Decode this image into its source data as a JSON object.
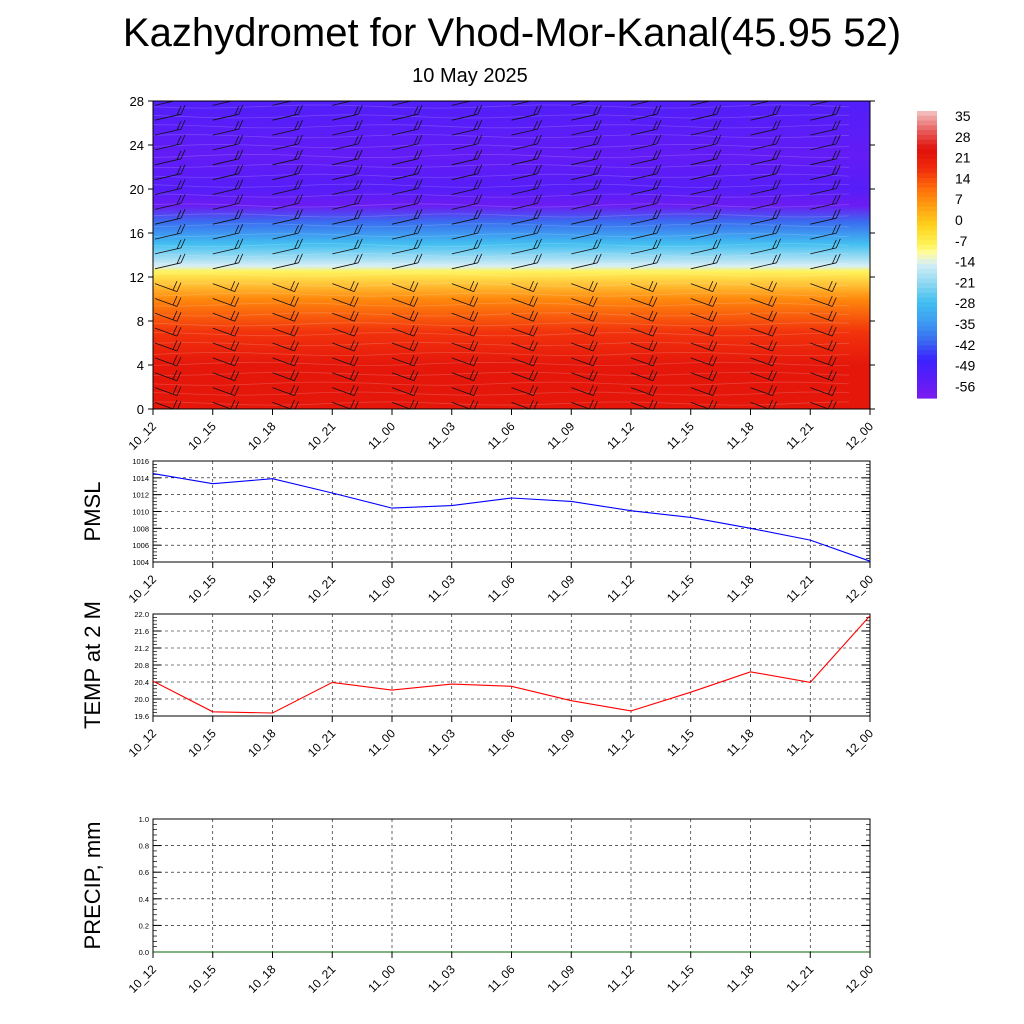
{
  "header": {
    "title": "Kazhydromet for Vhod-Mor-Kanal(45.95 52)",
    "subtitle": "10 May 2025"
  },
  "chart_data": [
    {
      "type": "heatmap",
      "id": "temperature-cross-section",
      "categories": [
        "10_12",
        "10_15",
        "10_18",
        "10_21",
        "11_00",
        "11_03",
        "11_06",
        "11_09",
        "11_12",
        "11_15",
        "11_18",
        "11_21",
        "12_00"
      ],
      "y_ticks": [
        0,
        4,
        8,
        12,
        16,
        20,
        24,
        28
      ],
      "ylim": [
        0,
        28
      ],
      "colorbar_labels": [
        "35",
        "28",
        "21",
        "14",
        "7",
        "0",
        "-7",
        "-14",
        "-21",
        "-28",
        "-35",
        "-42",
        "-49",
        "-56"
      ],
      "colorbar_range": [
        -63,
        42
      ],
      "profile": [
        {
          "level": 0,
          "value": 26
        },
        {
          "level": 4,
          "value": 26
        },
        {
          "level": 7,
          "value": 20
        },
        {
          "level": 10,
          "value": 10
        },
        {
          "level": 12.5,
          "value": -7
        },
        {
          "level": 13,
          "value": -14
        },
        {
          "level": 15,
          "value": -28
        },
        {
          "level": 17,
          "value": -42
        },
        {
          "level": 18.5,
          "value": -60
        },
        {
          "level": 20,
          "value": -55
        },
        {
          "level": 23,
          "value": -58
        },
        {
          "level": 28,
          "value": -54
        }
      ],
      "wind_barbs": "present",
      "colors": {
        "warm": "#e8120c",
        "cold": "#7a23f2"
      }
    },
    {
      "type": "line",
      "id": "pmsl",
      "ylabel": "PMSL",
      "categories": [
        "10_12",
        "10_15",
        "10_18",
        "10_21",
        "11_00",
        "11_03",
        "11_06",
        "11_09",
        "11_12",
        "11_15",
        "11_18",
        "11_21",
        "12_00"
      ],
      "x": [
        0,
        1,
        2,
        3,
        4,
        5,
        6,
        7,
        8,
        9,
        10,
        11,
        12
      ],
      "values": [
        1014.5,
        1013.3,
        1013.9,
        1012.2,
        1010.4,
        1010.7,
        1011.6,
        1011.2,
        1010.1,
        1009.3,
        1008.0,
        1006.6,
        1004.1
      ],
      "y_ticks": [
        "1004",
        "1006",
        "1008",
        "1010",
        "1012",
        "1014",
        "1016"
      ],
      "ylim": [
        1004,
        1016
      ],
      "color": "#0000ff",
      "grid": true
    },
    {
      "type": "line",
      "id": "temp-2m",
      "ylabel": "TEMP at 2 M",
      "categories": [
        "10_12",
        "10_15",
        "10_18",
        "10_21",
        "11_00",
        "11_03",
        "11_06",
        "11_09",
        "11_12",
        "11_15",
        "11_18",
        "11_21",
        "12_00"
      ],
      "x": [
        0,
        1,
        2,
        3,
        4,
        5,
        6,
        7,
        8,
        9,
        10,
        11,
        12
      ],
      "values": [
        20.42,
        19.7,
        19.67,
        20.39,
        20.21,
        20.35,
        20.3,
        19.96,
        19.72,
        20.16,
        20.64,
        20.39,
        21.96
      ],
      "y_ticks": [
        "19.6",
        "20.0",
        "20.4",
        "20.8",
        "21.2",
        "21.6",
        "22.0"
      ],
      "ylim": [
        19.6,
        22.0
      ],
      "color": "#ff0000",
      "grid": true
    },
    {
      "type": "line",
      "id": "precip",
      "ylabel": "PRECIP, mm",
      "categories": [
        "10_12",
        "10_15",
        "10_18",
        "10_21",
        "11_00",
        "11_03",
        "11_06",
        "11_09",
        "11_12",
        "11_15",
        "11_18",
        "11_21",
        "12_00"
      ],
      "x": [
        0,
        1,
        2,
        3,
        4,
        5,
        6,
        7,
        8,
        9,
        10,
        11,
        12
      ],
      "values": [
        0,
        0,
        0,
        0,
        0,
        0,
        0,
        0,
        0,
        0,
        0,
        0,
        0
      ],
      "y_ticks": [
        "0.0",
        "0.2",
        "0.4",
        "0.6",
        "0.8",
        "1.0"
      ],
      "ylim": [
        0,
        1
      ],
      "color": "#006400",
      "grid": true
    }
  ]
}
